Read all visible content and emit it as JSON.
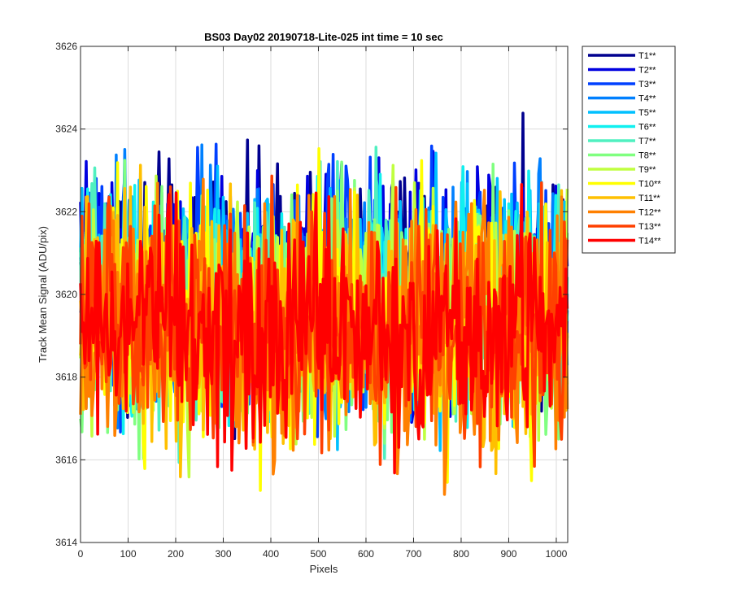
{
  "chart_data": {
    "type": "line",
    "title": "BS03 Day02 20190718-Lite-025 int time = 10 sec",
    "xlabel": "Pixels",
    "ylabel": "Track Mean Signal (ADU/pix)",
    "xlim": [
      0,
      1024
    ],
    "ylim": [
      3614,
      3626
    ],
    "xticks": [
      0,
      100,
      200,
      300,
      400,
      500,
      600,
      700,
      800,
      900,
      1000
    ],
    "yticks": [
      3614,
      3616,
      3618,
      3620,
      3622,
      3624,
      3626
    ],
    "grid": true,
    "legend_position": "outside-top-right",
    "series": [
      {
        "name": "T1**",
        "color": "#00008f",
        "mean": 3620.3,
        "spread": 1.4
      },
      {
        "name": "T2**",
        "color": "#0000e0",
        "mean": 3620.2,
        "spread": 1.4
      },
      {
        "name": "T3**",
        "color": "#0040ff",
        "mean": 3620.1,
        "spread": 1.4
      },
      {
        "name": "T4**",
        "color": "#0080ff",
        "mean": 3620.0,
        "spread": 1.4
      },
      {
        "name": "T5**",
        "color": "#00c0ff",
        "mean": 3619.9,
        "spread": 1.4
      },
      {
        "name": "T6**",
        "color": "#10f0f0",
        "mean": 3619.8,
        "spread": 1.4
      },
      {
        "name": "T7**",
        "color": "#50f0c0",
        "mean": 3619.7,
        "spread": 1.4
      },
      {
        "name": "T8**",
        "color": "#80ff80",
        "mean": 3619.6,
        "spread": 1.4
      },
      {
        "name": "T9**",
        "color": "#c0ff40",
        "mean": 3619.5,
        "spread": 1.4
      },
      {
        "name": "T10**",
        "color": "#ffff00",
        "mean": 3619.3,
        "spread": 1.5
      },
      {
        "name": "T11**",
        "color": "#ffc000",
        "mean": 3619.3,
        "spread": 1.5
      },
      {
        "name": "T12**",
        "color": "#ff8000",
        "mean": 3619.2,
        "spread": 1.5
      },
      {
        "name": "T13**",
        "color": "#ff4000",
        "mean": 3619.2,
        "spread": 1.4
      },
      {
        "name": "T14**",
        "color": "#ff0000",
        "mean": 3619.2,
        "spread": 1.3
      }
    ]
  }
}
